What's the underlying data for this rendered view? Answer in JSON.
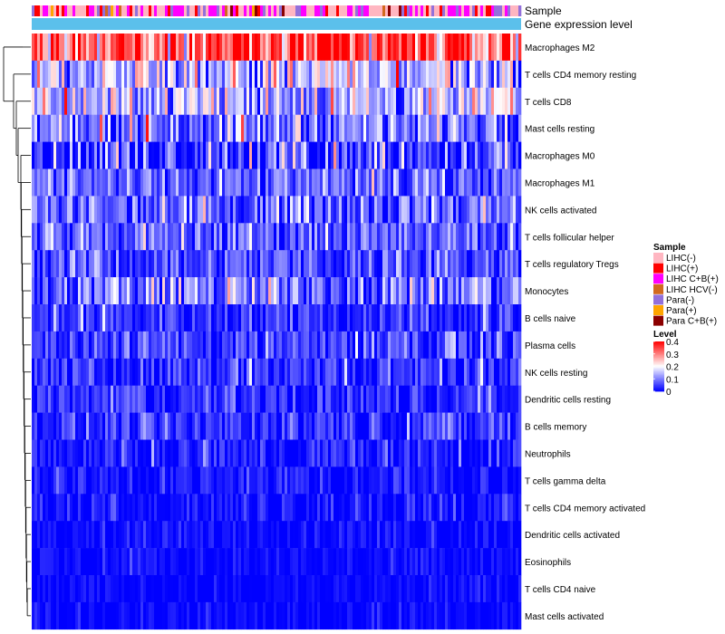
{
  "chart_data": {
    "type": "heatmap",
    "title": "",
    "annotation_tracks": [
      "Sample",
      "Gene expression level"
    ],
    "rows": [
      {
        "name": "Macrophages M2",
        "mean": 0.33,
        "spread": 0.1
      },
      {
        "name": "T cells CD4 memory resting",
        "mean": 0.15,
        "spread": 0.08
      },
      {
        "name": "T cells CD8",
        "mean": 0.14,
        "spread": 0.08
      },
      {
        "name": "Mast cells resting",
        "mean": 0.1,
        "spread": 0.07
      },
      {
        "name": "Macrophages M0",
        "mean": 0.05,
        "spread": 0.08
      },
      {
        "name": "Macrophages M1",
        "mean": 0.07,
        "spread": 0.05
      },
      {
        "name": "NK cells activated",
        "mean": 0.08,
        "spread": 0.06
      },
      {
        "name": "T cells follicular helper",
        "mean": 0.07,
        "spread": 0.05
      },
      {
        "name": "T cells regulatory  Tregs",
        "mean": 0.06,
        "spread": 0.05
      },
      {
        "name": "Monocytes",
        "mean": 0.09,
        "spread": 0.07
      },
      {
        "name": "B cells naive",
        "mean": 0.04,
        "spread": 0.04
      },
      {
        "name": "Plasma cells",
        "mean": 0.05,
        "spread": 0.05
      },
      {
        "name": "NK cells resting",
        "mean": 0.03,
        "spread": 0.04
      },
      {
        "name": "Dendritic cells resting",
        "mean": 0.03,
        "spread": 0.04
      },
      {
        "name": "B cells memory",
        "mean": 0.04,
        "spread": 0.04
      },
      {
        "name": "Neutrophils",
        "mean": 0.02,
        "spread": 0.04
      },
      {
        "name": "T cells gamma delta",
        "mean": 0.01,
        "spread": 0.03
      },
      {
        "name": "T cells CD4 memory activated",
        "mean": 0.01,
        "spread": 0.03
      },
      {
        "name": "Dendritic cells activated",
        "mean": 0.01,
        "spread": 0.02
      },
      {
        "name": "Eosinophils",
        "mean": 0.005,
        "spread": 0.02
      },
      {
        "name": "T cells CD4 naive",
        "mean": 0.003,
        "spread": 0.015
      },
      {
        "name": "Mast cells activated",
        "mean": 0.004,
        "spread": 0.02
      }
    ],
    "legend": {
      "sample": {
        "title": "Sample",
        "items": [
          {
            "label": "LIHC(-)",
            "color": "#ffb6c1"
          },
          {
            "label": "LIHC(+)",
            "color": "#ff0000"
          },
          {
            "label": "LIHC C+B(+)",
            "color": "#ff00ff"
          },
          {
            "label": "LIHC HCV(-)",
            "color": "#d2691e"
          },
          {
            "label": "Para(-)",
            "color": "#9370db"
          },
          {
            "label": "Para(+)",
            "color": "#ffa500"
          },
          {
            "label": "Para C+B(+)",
            "color": "#8b0000"
          }
        ]
      },
      "level": {
        "title": "Level",
        "ticks": [
          "0.4",
          "0.3",
          "0.2",
          "0.1",
          "0"
        ],
        "tick_values": [
          0.4,
          0.3,
          0.2,
          0.1,
          0
        ],
        "range": [
          0,
          0.4
        ],
        "colors": [
          "#0000ff",
          "#ffffff",
          "#ff0000"
        ]
      }
    },
    "gene_expression_color": "#5bc0eb"
  }
}
